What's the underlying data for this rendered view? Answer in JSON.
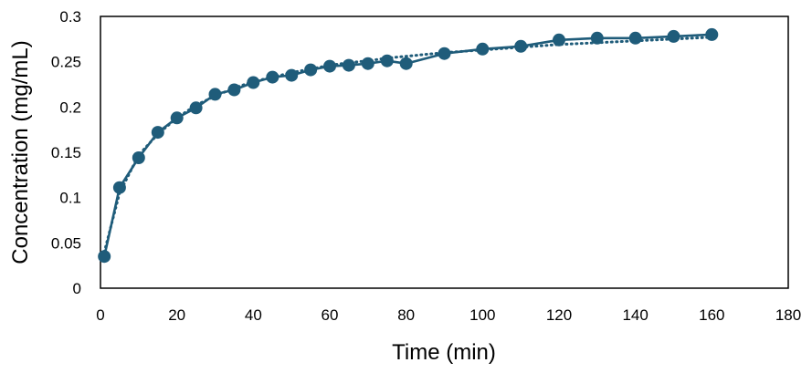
{
  "chart_data": {
    "type": "line",
    "title": "",
    "xlabel": "Time (min)",
    "ylabel": "Concentration (mg/mL)",
    "xlim": [
      0,
      180
    ],
    "ylim": [
      0,
      0.3
    ],
    "x_ticks": [
      "0",
      "20",
      "40",
      "60",
      "80",
      "100",
      "120",
      "140",
      "160",
      "180"
    ],
    "y_ticks": [
      "0",
      "0.05",
      "0.1",
      "0.15",
      "0.2",
      "0.25",
      "0.3"
    ],
    "grid": false,
    "legend": "none",
    "colors": {
      "series": "#1f5c7a",
      "fit": "#1f5c7a",
      "axis": "#000000"
    },
    "series": [
      {
        "style": "solid-with-markers",
        "x": [
          1,
          5,
          10,
          15,
          20,
          25,
          30,
          35,
          40,
          45,
          50,
          55,
          60,
          65,
          70,
          75,
          80,
          90,
          100,
          110,
          120,
          130,
          140,
          150,
          160
        ],
        "y": [
          0.035,
          0.111,
          0.144,
          0.172,
          0.188,
          0.199,
          0.214,
          0.219,
          0.227,
          0.233,
          0.235,
          0.241,
          0.245,
          0.246,
          0.248,
          0.251,
          0.248,
          0.259,
          0.264,
          0.267,
          0.274,
          0.276,
          0.276,
          0.278,
          0.28
        ]
      },
      {
        "style": "dotted-fit",
        "x": [
          1,
          5,
          10,
          15,
          20,
          25,
          30,
          35,
          40,
          45,
          50,
          55,
          60,
          65,
          70,
          75,
          80,
          90,
          100,
          110,
          120,
          130,
          140,
          150,
          160
        ],
        "y": [
          0.04,
          0.105,
          0.147,
          0.17,
          0.188,
          0.202,
          0.212,
          0.221,
          0.228,
          0.233,
          0.238,
          0.242,
          0.246,
          0.249,
          0.251,
          0.254,
          0.256,
          0.26,
          0.263,
          0.266,
          0.269,
          0.271,
          0.273,
          0.275,
          0.277
        ]
      }
    ]
  }
}
